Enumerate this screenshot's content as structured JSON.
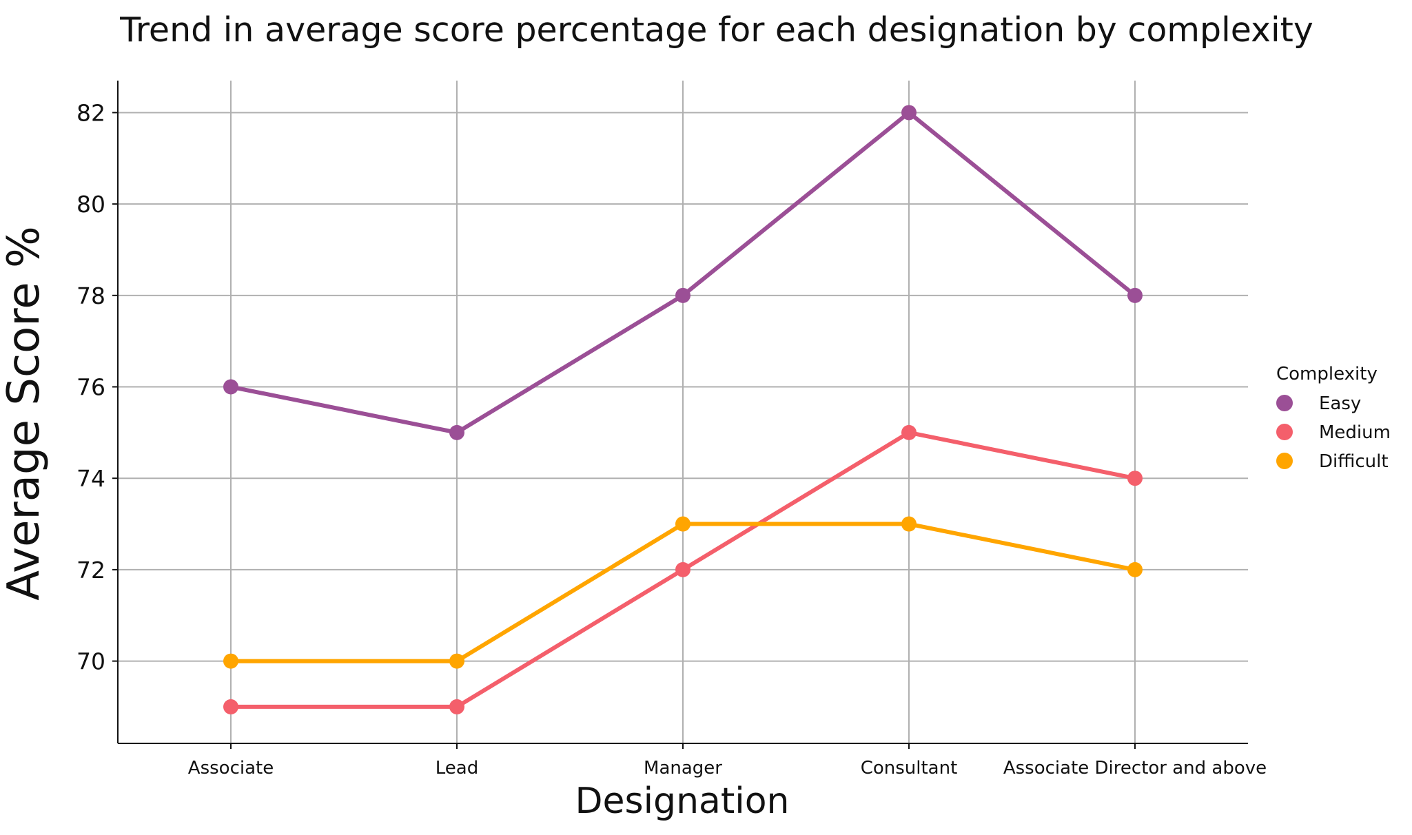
{
  "chart_data": {
    "type": "line",
    "title": "Trend in average score percentage for each designation by complexity",
    "xlabel": "Designation",
    "ylabel": "Average Score %",
    "categories": [
      "Associate",
      "Lead",
      "Manager",
      "Consultant",
      "Associate Director and above"
    ],
    "ylim": [
      68.2,
      82.7
    ],
    "yticks": [
      70,
      72,
      74,
      76,
      78,
      80,
      82
    ],
    "grid": true,
    "legend": {
      "title": "Complexity",
      "placement": "right"
    },
    "series": [
      {
        "name": "Easy",
        "color": "#9b4f96",
        "values": [
          76,
          75,
          78,
          82,
          78
        ]
      },
      {
        "name": "Medium",
        "color": "#f45f6b",
        "values": [
          69,
          69,
          72,
          75,
          74
        ]
      },
      {
        "name": "Difficult",
        "color": "#ffa500",
        "values": [
          70,
          70,
          73,
          73,
          72
        ]
      }
    ]
  }
}
